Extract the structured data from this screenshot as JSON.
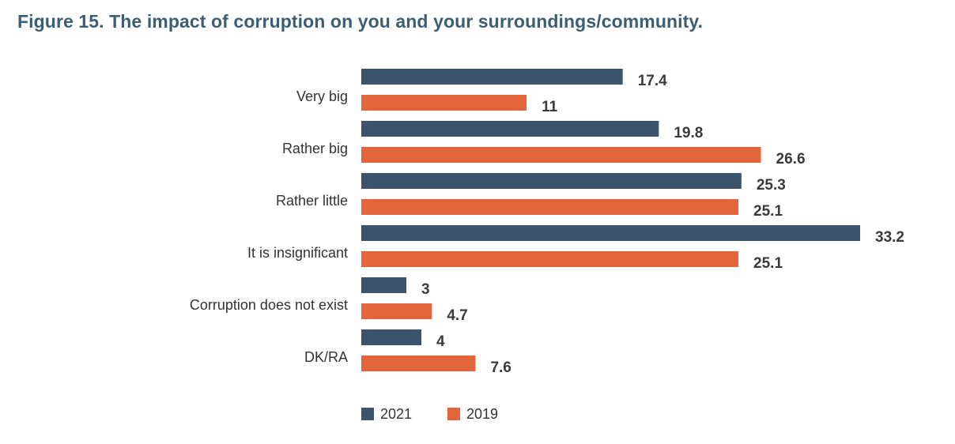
{
  "figure": {
    "title": "Figure 15. The impact of corruption on you and your surroundings/community."
  },
  "colors": {
    "series_2021": "#3b536d",
    "series_2019": "#e3653a",
    "title": "#3b5e73",
    "text": "#333333"
  },
  "chart_data": {
    "type": "bar",
    "orientation": "horizontal",
    "title": "Figure 15. The impact of corruption on you and your surroundings/community.",
    "categories": [
      "Very big",
      "Rather big",
      "Rather little",
      "It is insignificant",
      "Corruption does not exist",
      "DK/RA"
    ],
    "series": [
      {
        "name": "2021",
        "values": [
          17.4,
          19.8,
          25.3,
          33.2,
          3,
          4
        ]
      },
      {
        "name": "2019",
        "values": [
          11,
          26.6,
          25.1,
          25.1,
          4.7,
          7.6
        ]
      }
    ],
    "xlabel": "",
    "ylabel": "",
    "xlim": [
      0,
      33.2
    ],
    "grid": false,
    "legend": "bottom-left"
  }
}
